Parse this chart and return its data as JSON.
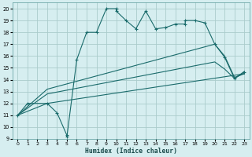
{
  "title": "",
  "xlabel": "Humidex (Indice chaleur)",
  "bg_color": "#d6eef0",
  "grid_color": "#aacccc",
  "line_color": "#1a6b6b",
  "xlim": [
    -0.5,
    23.5
  ],
  "ylim": [
    9,
    20.5
  ],
  "xticks": [
    0,
    1,
    2,
    3,
    4,
    5,
    6,
    7,
    8,
    9,
    10,
    11,
    12,
    13,
    14,
    15,
    16,
    17,
    18,
    19,
    20,
    21,
    22,
    23
  ],
  "yticks": [
    9,
    10,
    11,
    12,
    13,
    14,
    15,
    16,
    17,
    18,
    19,
    20
  ],
  "line1_x": [
    0,
    1,
    3,
    4,
    5,
    5,
    6,
    7,
    8,
    9,
    10,
    10,
    11,
    12,
    13,
    14,
    15,
    16,
    17,
    17,
    18,
    19,
    20,
    21,
    22,
    23
  ],
  "line1_y": [
    11,
    12,
    12,
    11.2,
    9.3,
    9.2,
    15.7,
    18,
    18,
    20,
    20,
    19.8,
    19,
    18.3,
    19.8,
    18.3,
    18.4,
    18.7,
    18.7,
    19,
    19,
    18.8,
    17,
    15.9,
    14.1,
    14.6
  ],
  "line2_x": [
    0,
    3,
    23
  ],
  "line2_y": [
    11,
    12,
    14.5
  ],
  "line3_x": [
    0,
    3,
    20,
    21,
    22,
    23
  ],
  "line3_y": [
    11,
    12.8,
    15.5,
    14.9,
    14.1,
    14.7
  ],
  "line4_x": [
    0,
    3,
    20,
    21,
    22,
    23
  ],
  "line4_y": [
    11,
    13.2,
    17.0,
    16.0,
    14.2,
    14.5
  ]
}
